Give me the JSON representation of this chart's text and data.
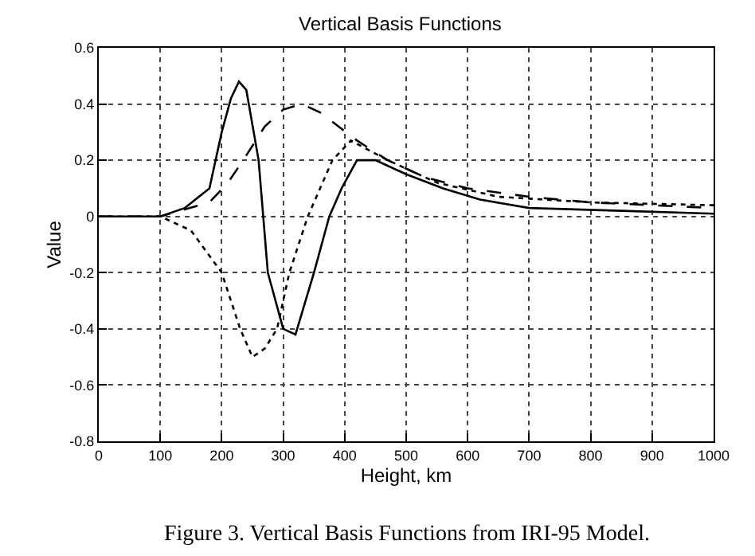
{
  "chart_data": {
    "type": "line",
    "title": "Vertical Basis Functions",
    "xlabel": "Height, km",
    "ylabel": "Value",
    "annotations": [
      "Figure 3. Vertical Basis Functions from IRI-95 Model."
    ],
    "xlim": [
      0,
      1000
    ],
    "xticks": [
      0,
      100,
      200,
      300,
      400,
      500,
      600,
      700,
      800,
      900,
      1000
    ],
    "ylim": [
      -0.8,
      0.6
    ],
    "yticks": [
      -0.8,
      -0.6,
      -0.4,
      -0.2,
      0,
      0.2,
      0.4,
      0.6
    ],
    "grid": true,
    "marker": "none",
    "series": [
      {
        "color": "#000000",
        "line_style": "solid",
        "x": [
          0,
          100,
          140,
          180,
          200,
          215,
          228,
          240,
          260,
          275,
          300,
          320,
          350,
          375,
          395,
          420,
          450,
          500,
          560,
          620,
          700,
          850,
          1000
        ],
        "values": [
          0,
          0,
          0.03,
          0.1,
          0.3,
          0.42,
          0.48,
          0.45,
          0.2,
          -0.2,
          -0.4,
          -0.42,
          -0.2,
          0,
          0.1,
          0.2,
          0.2,
          0.15,
          0.1,
          0.06,
          0.03,
          0.02,
          0.01
        ]
      },
      {
        "color": "#000000",
        "line_style": "dotted",
        "x": [
          0,
          100,
          150,
          200,
          230,
          250,
          270,
          290,
          310,
          340,
          380,
          410,
          470,
          550,
          650,
          800,
          1000
        ],
        "values": [
          0,
          0,
          -0.05,
          -0.2,
          -0.4,
          -0.5,
          -0.47,
          -0.4,
          -0.2,
          0,
          0.2,
          0.27,
          0.2,
          0.12,
          0.07,
          0.05,
          0.04
        ]
      },
      {
        "color": "#000000",
        "line_style": "dashed",
        "x": [
          0,
          100,
          180,
          210,
          235,
          270,
          300,
          330,
          360,
          420,
          470,
          530,
          600,
          700,
          800,
          1000
        ],
        "values": [
          0,
          0,
          0.05,
          0.12,
          0.2,
          0.32,
          0.38,
          0.4,
          0.37,
          0.27,
          0.2,
          0.14,
          0.1,
          0.07,
          0.05,
          0.03
        ]
      }
    ]
  }
}
